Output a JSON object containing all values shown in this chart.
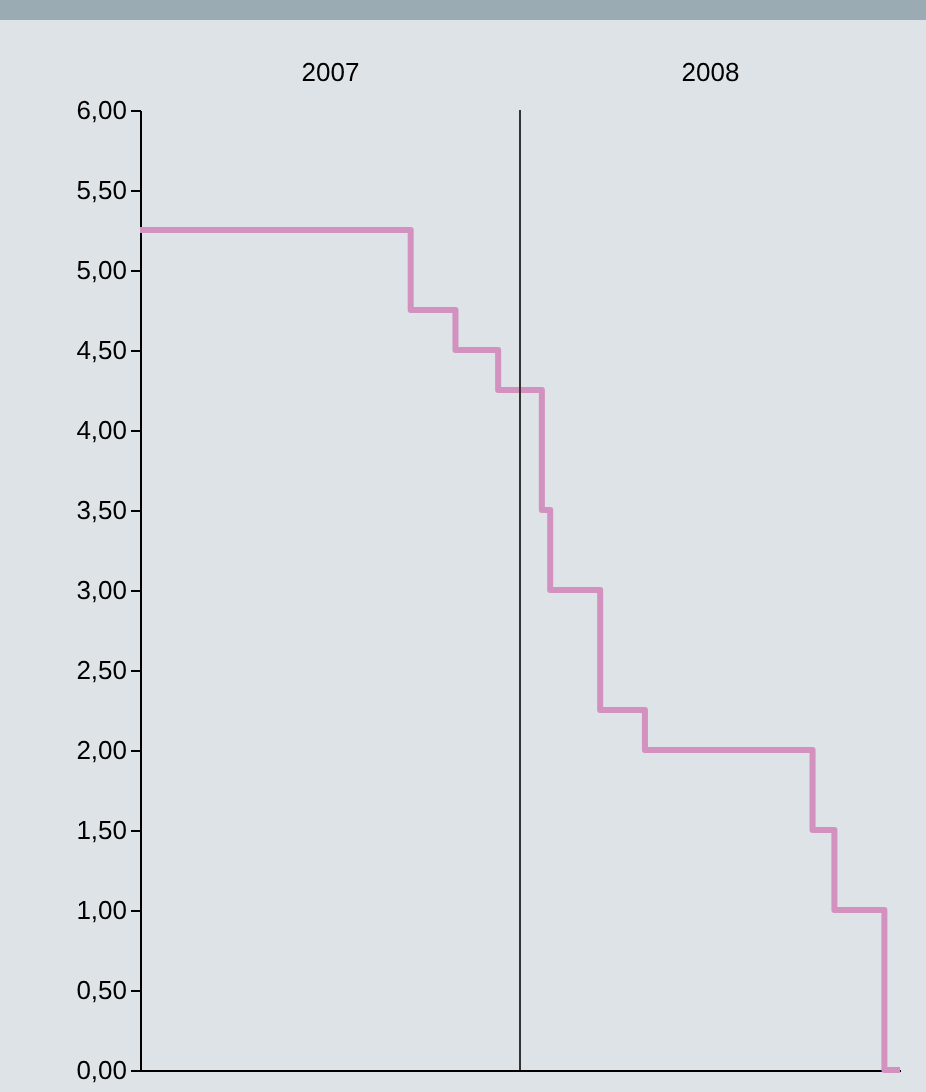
{
  "chart_data": {
    "type": "step",
    "x": [
      "2007-01-01",
      "2007-09-18",
      "2007-10-31",
      "2007-12-11",
      "2008-01-22",
      "2008-01-30",
      "2008-03-18",
      "2008-04-30",
      "2008-10-08",
      "2008-10-29",
      "2008-12-16",
      "2008-12-31"
    ],
    "series": [
      {
        "color": "#d291bf",
        "values": [
          5.25,
          4.75,
          4.5,
          4.25,
          3.5,
          3.0,
          2.25,
          2.0,
          1.5,
          1.0,
          0,
          0
        ]
      }
    ],
    "xlim": [
      "2007-01-01",
      "2008-12-31"
    ],
    "xticks": [
      {
        "value": "2007-07-02",
        "label": "2007"
      },
      {
        "value": "2008-07-01",
        "label": "2008"
      }
    ],
    "ylim": [
      0,
      6
    ],
    "yticks": [
      {
        "value": 0,
        "label": "0,00"
      },
      {
        "value": 0.5,
        "label": "0,50"
      },
      {
        "value": 1,
        "label": "1,00"
      },
      {
        "value": 1.5,
        "label": "1,50"
      },
      {
        "value": 2,
        "label": "2,00"
      },
      {
        "value": 2.5,
        "label": "2,50"
      },
      {
        "value": 3,
        "label": "3,00"
      },
      {
        "value": 3.5,
        "label": "3,50"
      },
      {
        "value": 4,
        "label": "4,00"
      },
      {
        "value": 4.5,
        "label": "4,50"
      },
      {
        "value": 5,
        "label": "5,00"
      },
      {
        "value": 5.5,
        "label": "5,50"
      },
      {
        "value": 6,
        "label": "6,00"
      }
    ],
    "ref_lines": [
      {
        "axis": "x",
        "value": "2008-01-01",
        "color": "#333333"
      }
    ],
    "grid": false
  }
}
